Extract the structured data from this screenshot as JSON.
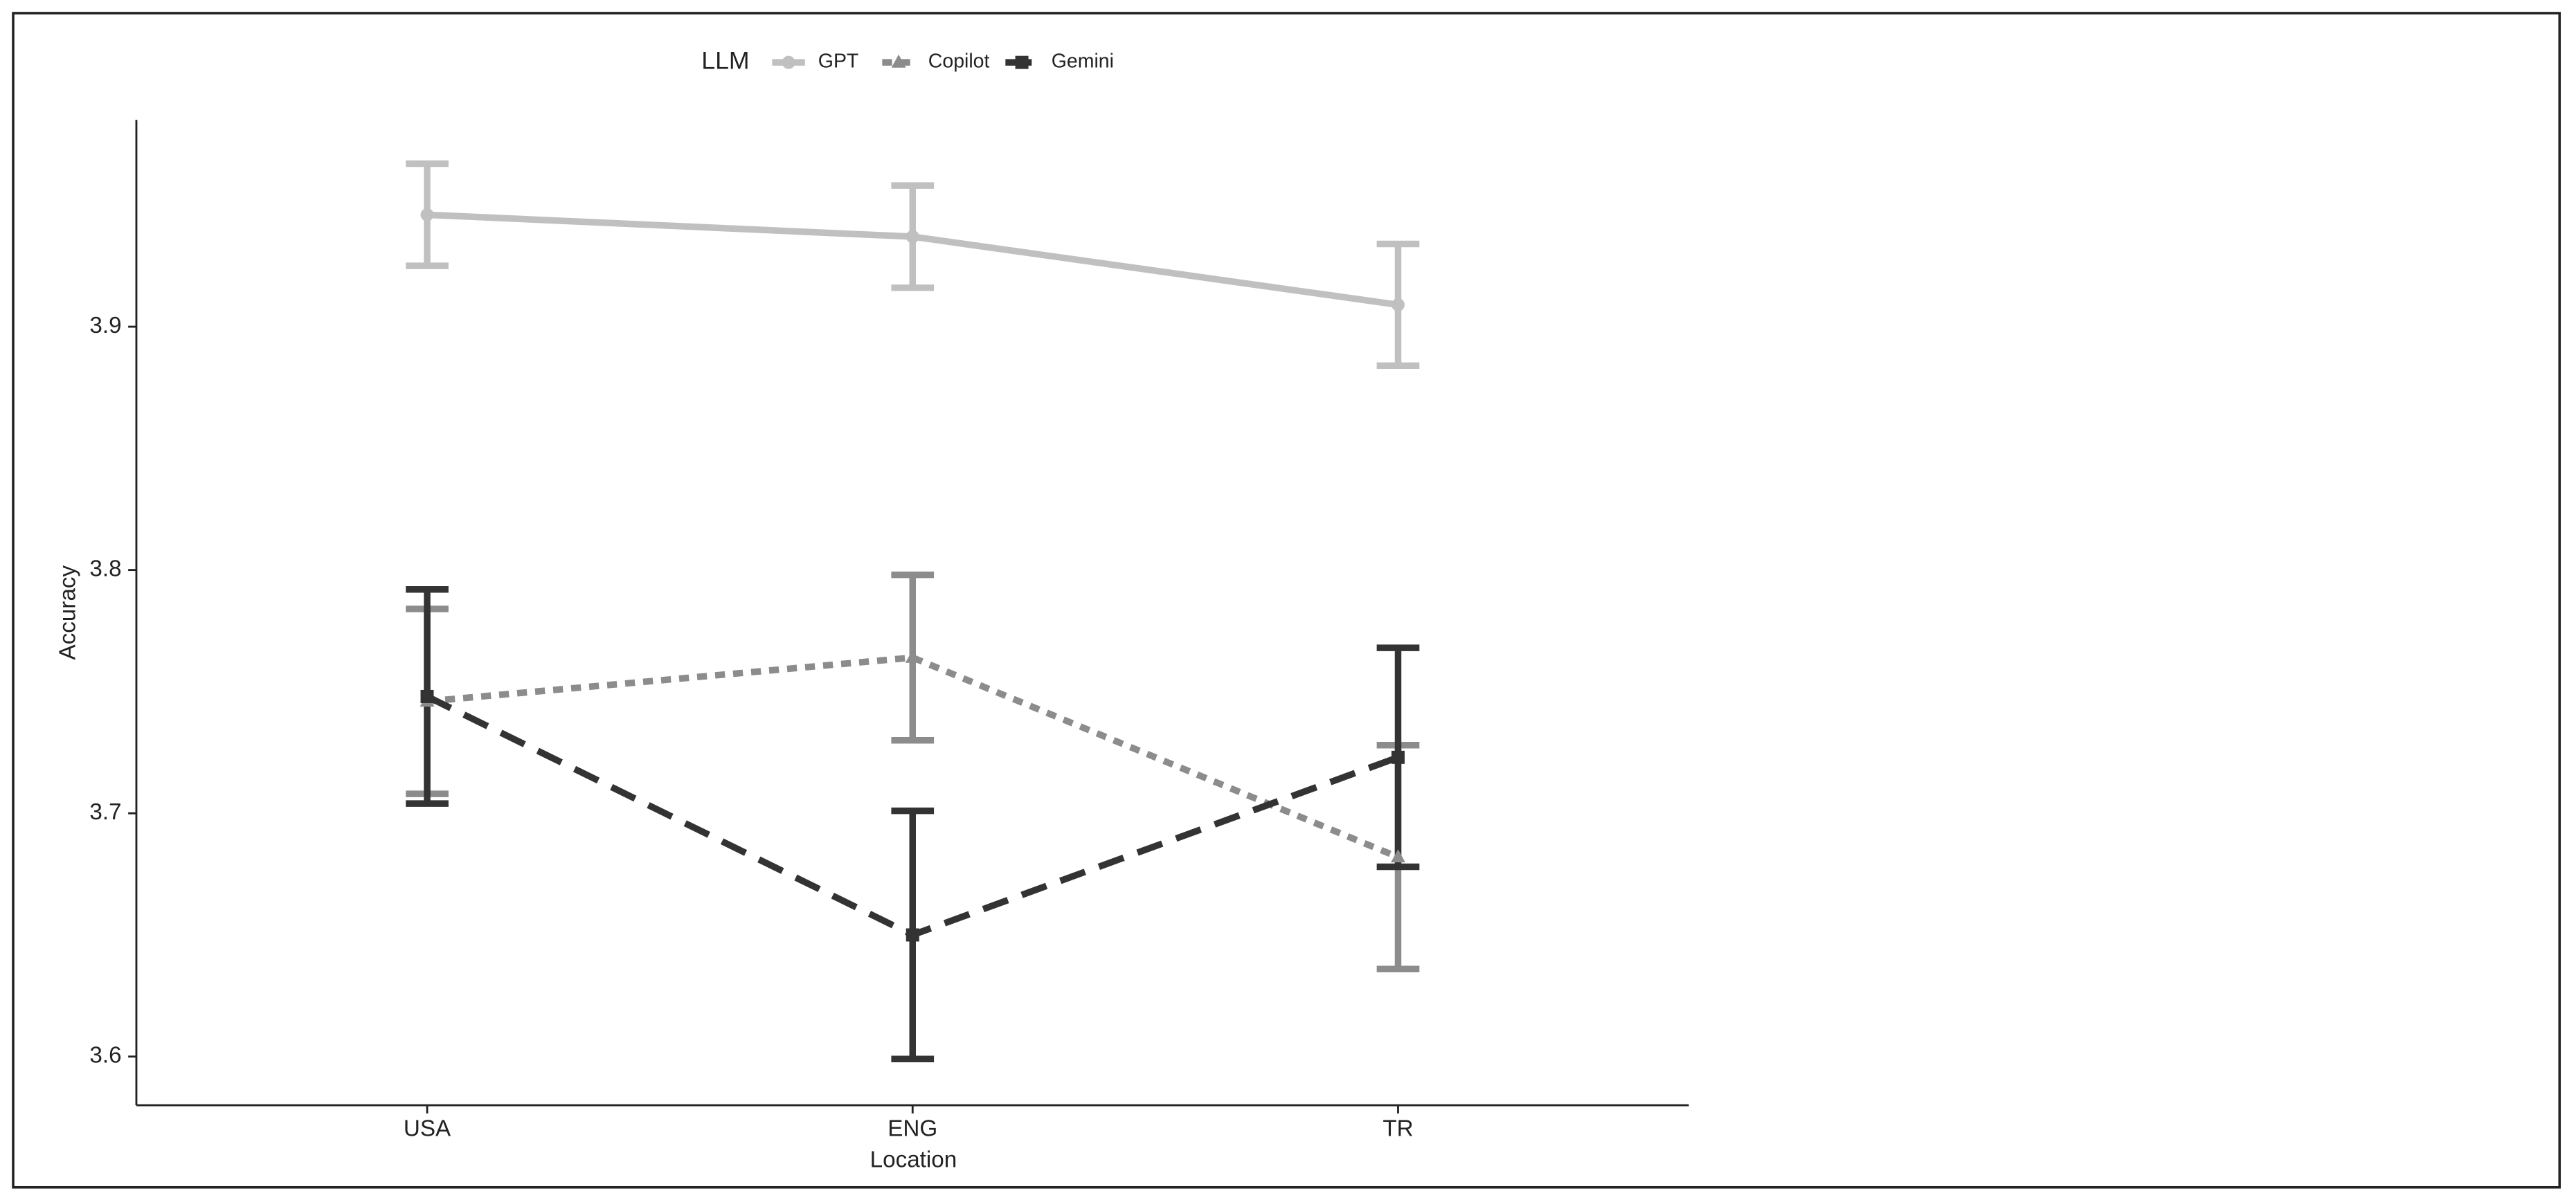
{
  "chart_data": {
    "type": "line",
    "x_label": "Location",
    "y_label": "Accuracy",
    "legend_title": "LLM",
    "legend": "top",
    "categories": [
      "USA",
      "ENG",
      "TR"
    ],
    "ylim": [
      3.58,
      3.985
    ],
    "yticks": [
      3.6,
      3.7,
      3.8,
      3.9
    ],
    "grid": false,
    "series": [
      {
        "name": "GPT",
        "color": "#c0c0c0",
        "linetype": "solid",
        "shape": "circle",
        "values": [
          3.946,
          3.937,
          3.909
        ],
        "errors": [
          0.021,
          0.021,
          0.025
        ]
      },
      {
        "name": "Copilot",
        "color": "#8c8c8c",
        "linetype": "dotted",
        "shape": "triangle",
        "values": [
          3.746,
          3.764,
          3.682
        ],
        "errors": [
          0.038,
          0.034,
          0.046
        ]
      },
      {
        "name": "Gemini",
        "color": "#333333",
        "linetype": "dashed",
        "shape": "square",
        "values": [
          3.748,
          3.65,
          3.723
        ],
        "errors": [
          0.044,
          0.051,
          0.045
        ]
      }
    ]
  }
}
